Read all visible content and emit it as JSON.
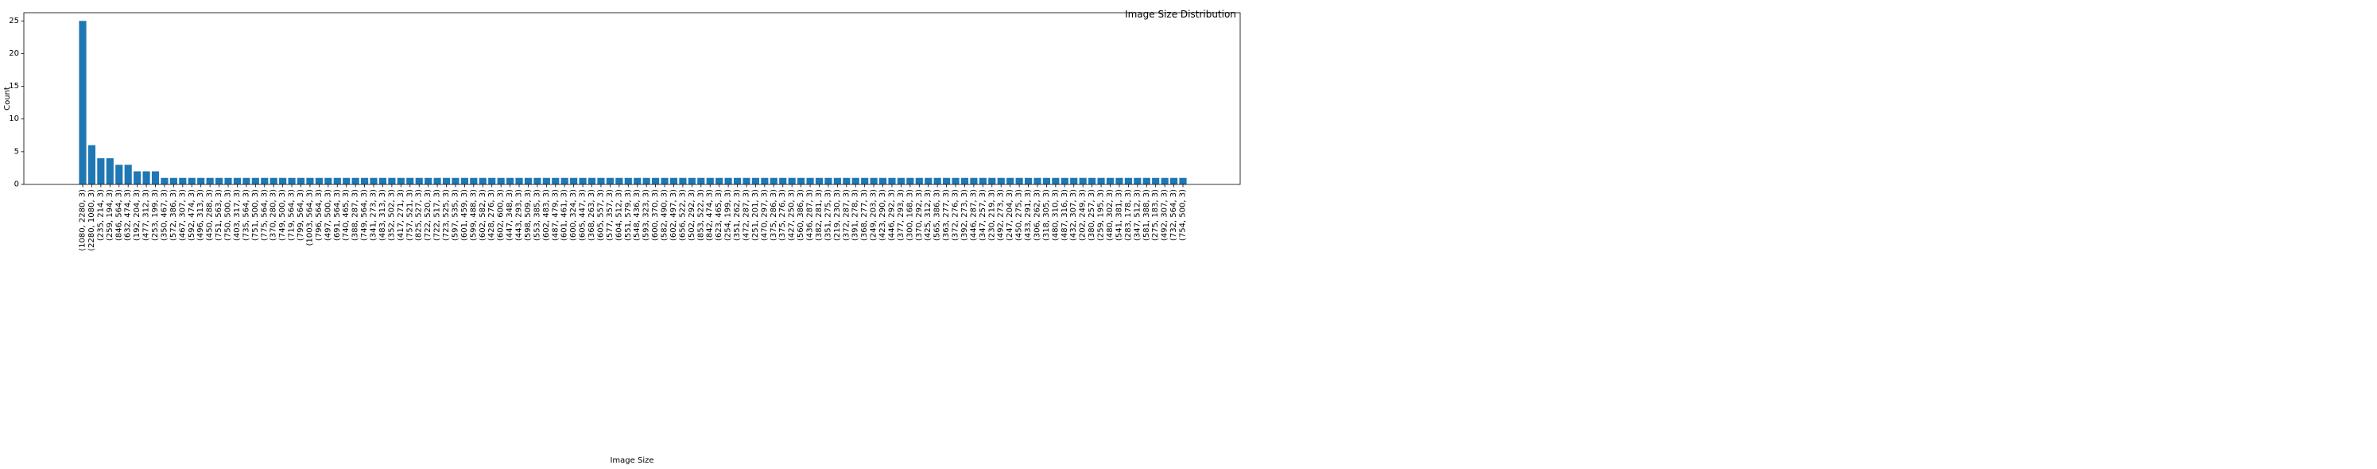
{
  "chart_data": {
    "type": "bar",
    "title": "Image Size Distribution",
    "xlabel": "Image Size",
    "ylabel": "Count",
    "ylim": [
      0,
      26.25
    ],
    "yticks": [
      0,
      5,
      10,
      15,
      20,
      25
    ],
    "grid": false,
    "legend": "none",
    "bar_color": "#1f77b4",
    "categories": [
      "(1080, 2280, 3)",
      "(2280, 1080, 3)",
      "(235, 214, 3)",
      "(259, 194, 3)",
      "(846, 564, 3)",
      "(632, 474, 3)",
      "(192, 204, 3)",
      "(477, 312, 3)",
      "(253, 199, 3)",
      "(350, 467, 3)",
      "(572, 386, 3)",
      "(467, 307, 3)",
      "(592, 474, 3)",
      "(496, 313, 3)",
      "(450, 288, 3)",
      "(751, 563, 3)",
      "(750, 500, 3)",
      "(403, 317, 3)",
      "(735, 564, 3)",
      "(751, 500, 3)",
      "(775, 564, 3)",
      "(370, 280, 3)",
      "(749, 500, 3)",
      "(719, 564, 3)",
      "(799, 564, 3)",
      "(1003, 564, 3)",
      "(796, 564, 3)",
      "(497, 500, 3)",
      "(691, 564, 3)",
      "(740, 465, 3)",
      "(388, 287, 3)",
      "(749, 564, 3)",
      "(341, 273, 3)",
      "(483, 313, 3)",
      "(352, 502, 3)",
      "(417, 271, 3)",
      "(757, 521, 3)",
      "(825, 527, 3)",
      "(722, 520, 3)",
      "(722, 517, 3)",
      "(723, 525, 3)",
      "(597, 535, 3)",
      "(601, 459, 3)",
      "(599, 488, 3)",
      "(602, 582, 3)",
      "(428, 276, 3)",
      "(602, 600, 3)",
      "(447, 348, 3)",
      "(443, 293, 3)",
      "(598, 509, 3)",
      "(553, 385, 3)",
      "(602, 483, 3)",
      "(487, 479, 3)",
      "(601, 461, 3)",
      "(600, 324, 3)",
      "(605, 447, 3)",
      "(368, 263, 3)",
      "(605, 557, 3)",
      "(577, 357, 3)",
      "(604, 512, 3)",
      "(551, 579, 3)",
      "(548, 436, 3)",
      "(593, 323, 3)",
      "(600, 370, 3)",
      "(582, 490, 3)",
      "(602, 497, 3)",
      "(656, 522, 3)",
      "(502, 292, 3)",
      "(853, 522, 3)",
      "(842, 474, 3)",
      "(623, 465, 3)",
      "(254, 199, 3)",
      "(351, 262, 3)",
      "(472, 287, 3)",
      "(251, 201, 3)",
      "(470, 297, 3)",
      "(375, 286, 3)",
      "(375, 276, 3)",
      "(427, 250, 3)",
      "(560, 386, 3)",
      "(436, 287, 3)",
      "(382, 281, 3)",
      "(351, 275, 3)",
      "(219, 230, 3)",
      "(372, 287, 3)",
      "(391, 278, 3)",
      "(368, 277, 3)",
      "(249, 203, 3)",
      "(423, 290, 3)",
      "(446, 292, 3)",
      "(377, 293, 3)",
      "(300, 168, 3)",
      "(370, 292, 3)",
      "(425, 312, 3)",
      "(565, 386, 3)",
      "(363, 277, 3)",
      "(372, 276, 3)",
      "(392, 273, 3)",
      "(446, 287, 3)",
      "(347, 257, 3)",
      "(230, 219, 3)",
      "(492, 273, 3)",
      "(247, 204, 3)",
      "(450, 275, 3)",
      "(433, 291, 3)",
      "(306, 262, 3)",
      "(318, 305, 3)",
      "(480, 310, 3)",
      "(487, 316, 3)",
      "(432, 307, 3)",
      "(202, 249, 3)",
      "(380, 257, 3)",
      "(259, 195, 3)",
      "(480, 302, 3)",
      "(541, 381, 3)",
      "(283, 178, 3)",
      "(347, 512, 3)",
      "(581, 388, 3)",
      "(275, 183, 3)",
      "(492, 307, 3)",
      "(732, 564, 3)",
      "(754, 500, 3)"
    ],
    "values": [
      25,
      6,
      4,
      4,
      3,
      3,
      2,
      2,
      2,
      1,
      1,
      1,
      1,
      1,
      1,
      1,
      1,
      1,
      1,
      1,
      1,
      1,
      1,
      1,
      1,
      1,
      1,
      1,
      1,
      1,
      1,
      1,
      1,
      1,
      1,
      1,
      1,
      1,
      1,
      1,
      1,
      1,
      1,
      1,
      1,
      1,
      1,
      1,
      1,
      1,
      1,
      1,
      1,
      1,
      1,
      1,
      1,
      1,
      1,
      1,
      1,
      1,
      1,
      1,
      1,
      1,
      1,
      1,
      1,
      1,
      1,
      1,
      1,
      1,
      1,
      1,
      1,
      1,
      1,
      1,
      1,
      1,
      1,
      1,
      1,
      1,
      1,
      1,
      1,
      1,
      1,
      1,
      1,
      1,
      1,
      1,
      1,
      1,
      1,
      1,
      1,
      1,
      1,
      1,
      1,
      1,
      1,
      1,
      1,
      1,
      1,
      1,
      1,
      1,
      1,
      1,
      1,
      1,
      1,
      1,
      1,
      1
    ]
  }
}
